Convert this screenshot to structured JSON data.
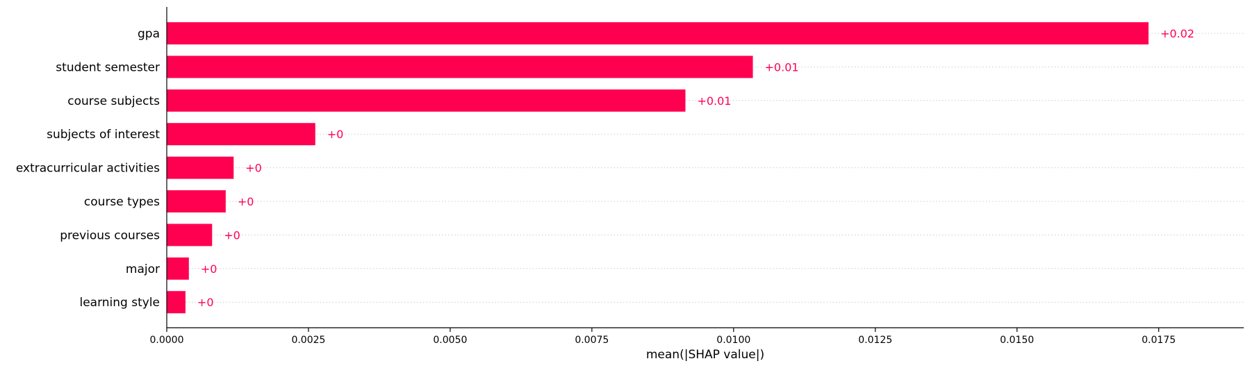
{
  "chart_data": {
    "type": "bar",
    "orientation": "horizontal",
    "title": "",
    "xlabel": "mean(|SHAP value|)",
    "ylabel": "",
    "xlim": [
      0,
      0.019
    ],
    "xticks": [
      "0.0000",
      "0.0025",
      "0.0050",
      "0.0075",
      "0.0100",
      "0.0125",
      "0.0150",
      "0.0175"
    ],
    "xtick_values": [
      0,
      0.0025,
      0.005,
      0.0075,
      0.01,
      0.0125,
      0.015,
      0.0175
    ],
    "categories": [
      "gpa",
      "student semester",
      "course subjects",
      "subjects of interest",
      "extracurricular activities",
      "course types",
      "previous courses",
      "major",
      "learning style"
    ],
    "values": [
      0.01732,
      0.01034,
      0.00915,
      0.00262,
      0.00118,
      0.00104,
      0.0008,
      0.00039,
      0.00033
    ],
    "data_labels": [
      "+0.02",
      "+0.01",
      "+0.01",
      "+0",
      "+0",
      "+0",
      "+0",
      "+0",
      "+0"
    ],
    "bar_color": "#ff0051",
    "grid": "dotted horizontal row guides",
    "legend": "none"
  }
}
